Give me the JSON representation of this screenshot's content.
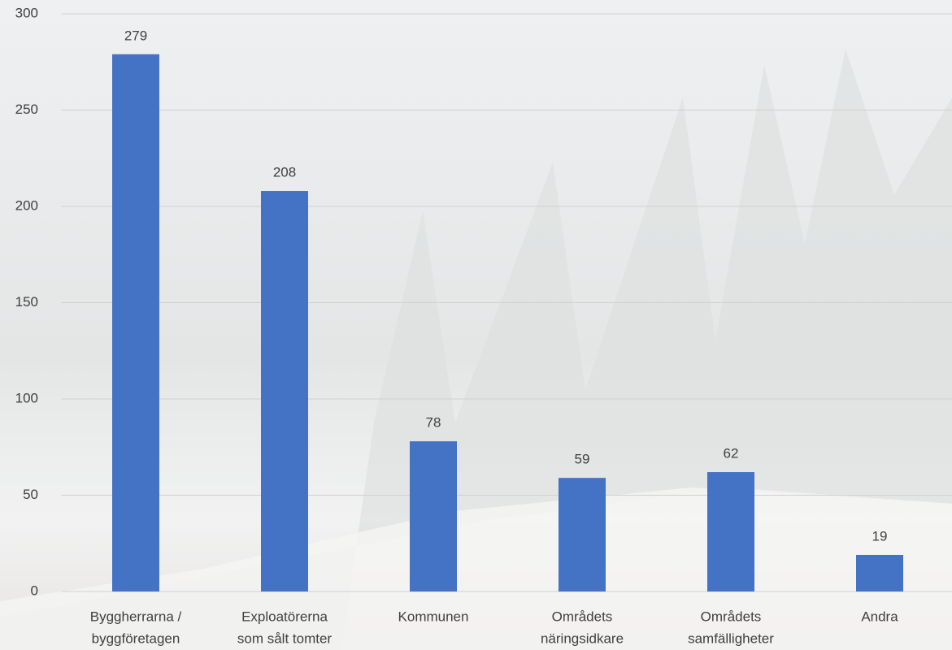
{
  "chart_data": {
    "type": "bar",
    "categories": [
      [
        "Byggherrarna /",
        "byggföretagen"
      ],
      [
        "Exploatörerna",
        "som sålt tomter"
      ],
      [
        "Kommunen"
      ],
      [
        "Områdets",
        "näringsidkare"
      ],
      [
        "Områdets",
        "samfälligheter"
      ],
      [
        "Andra"
      ]
    ],
    "values": [
      279,
      208,
      78,
      59,
      62,
      19
    ],
    "color": "#4472c4",
    "ylim": [
      0,
      300
    ],
    "yticks": [
      0,
      50,
      100,
      150,
      200,
      250,
      300
    ],
    "grid": true
  }
}
